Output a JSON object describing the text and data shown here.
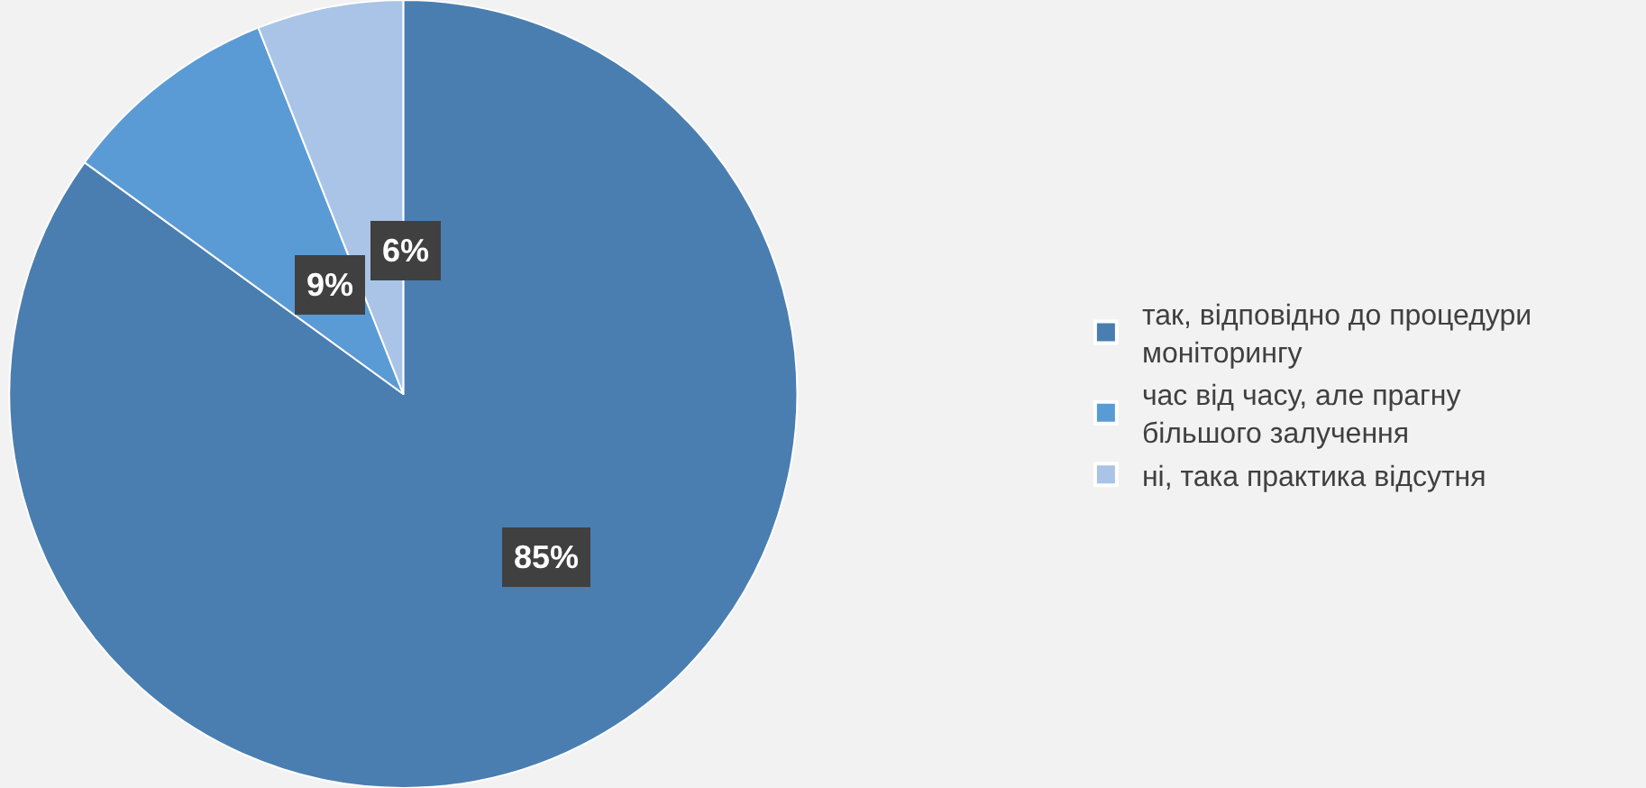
{
  "chart_data": {
    "type": "pie",
    "categories": [
      "так, відповідно до процедури моніторингу",
      "час від часу, але прагну більшого залучення",
      "ні, така практика відсутня"
    ],
    "values": [
      85,
      9,
      6
    ],
    "value_labels": [
      "85%",
      "9%",
      "6%"
    ],
    "colors": [
      "#4a7eb0",
      "#5b9bd5",
      "#a9c4e6"
    ],
    "legend": "right"
  }
}
